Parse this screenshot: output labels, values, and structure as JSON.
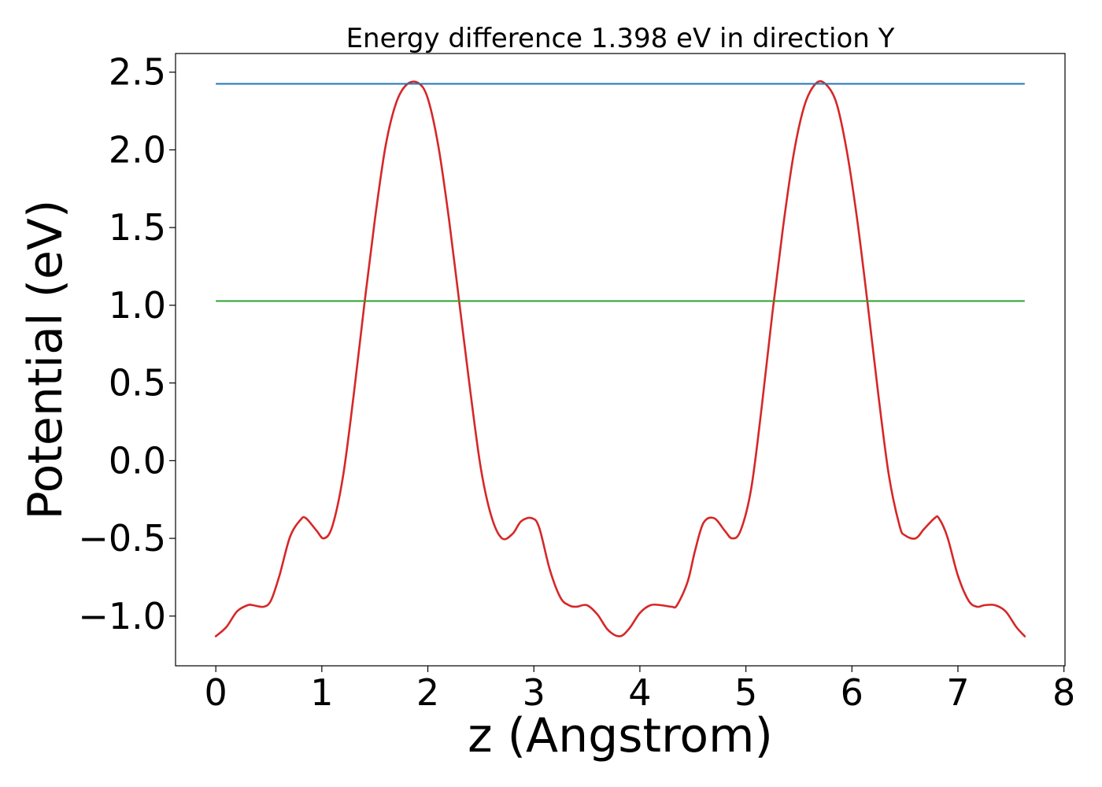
{
  "chart_data": {
    "type": "line",
    "title": "Energy difference 1.398 eV in direction Y",
    "xlabel": "z (Angstrom)",
    "ylabel": "Potential (eV)",
    "xlim": [
      -0.38,
      8.01
    ],
    "ylim": [
      -1.32,
      2.62
    ],
    "xticks": [
      0,
      1,
      2,
      3,
      4,
      5,
      6,
      7,
      8
    ],
    "xtick_labels": [
      "0",
      "1",
      "2",
      "3",
      "4",
      "5",
      "6",
      "7",
      "8"
    ],
    "yticks": [
      -1.0,
      -0.5,
      0.0,
      0.5,
      1.0,
      1.5,
      2.0,
      2.5
    ],
    "ytick_labels": [
      "−1.0",
      "−0.5",
      "0.0",
      "0.5",
      "1.0",
      "1.5",
      "2.0",
      "2.5"
    ],
    "grid": false,
    "series": [
      {
        "color": "#d62728",
        "kind": "curve",
        "x": [
          0.0,
          0.1,
          0.2,
          0.3,
          0.35,
          0.45,
          0.52,
          0.6,
          0.7,
          0.8,
          0.85,
          0.95,
          1.02,
          1.1,
          1.2,
          1.3,
          1.4,
          1.5,
          1.6,
          1.7,
          1.8,
          1.91,
          2.0,
          2.1,
          2.2,
          2.3,
          2.4,
          2.5,
          2.6,
          2.7,
          2.8,
          2.88,
          2.98,
          3.05,
          3.15,
          3.25,
          3.33,
          3.4,
          3.5,
          3.6,
          3.7,
          3.81,
          3.9,
          4.0,
          4.1,
          4.2,
          4.3,
          4.35,
          4.45,
          4.52,
          4.6,
          4.7,
          4.8,
          4.87,
          4.95,
          5.05,
          5.15,
          5.25,
          5.35,
          5.45,
          5.55,
          5.65,
          5.74,
          5.85,
          5.95,
          6.05,
          6.15,
          6.25,
          6.35,
          6.45,
          6.5,
          6.6,
          6.68,
          6.78,
          6.82,
          6.9,
          7.0,
          7.1,
          7.18,
          7.25,
          7.35,
          7.45,
          7.55,
          7.63
        ],
        "y": [
          -1.13,
          -1.07,
          -0.97,
          -0.93,
          -0.93,
          -0.94,
          -0.9,
          -0.74,
          -0.49,
          -0.38,
          -0.37,
          -0.45,
          -0.5,
          -0.42,
          -0.1,
          0.42,
          1.0,
          1.55,
          2.02,
          2.3,
          2.42,
          2.43,
          2.33,
          2.02,
          1.55,
          1.0,
          0.45,
          -0.05,
          -0.36,
          -0.5,
          -0.47,
          -0.39,
          -0.37,
          -0.43,
          -0.7,
          -0.88,
          -0.93,
          -0.94,
          -0.93,
          -0.99,
          -1.09,
          -1.13,
          -1.08,
          -0.98,
          -0.93,
          -0.93,
          -0.94,
          -0.93,
          -0.78,
          -0.58,
          -0.4,
          -0.37,
          -0.45,
          -0.5,
          -0.45,
          -0.18,
          0.35,
          0.95,
          1.5,
          1.97,
          2.28,
          2.42,
          2.43,
          2.31,
          2.0,
          1.55,
          1.0,
          0.42,
          -0.1,
          -0.42,
          -0.48,
          -0.5,
          -0.44,
          -0.37,
          -0.37,
          -0.49,
          -0.74,
          -0.9,
          -0.94,
          -0.93,
          -0.93,
          -0.97,
          -1.07,
          -1.13
        ]
      },
      {
        "color": "#1f77b4",
        "kind": "hline",
        "x": [
          0.0,
          7.63
        ],
        "y": [
          2.425,
          2.425
        ]
      },
      {
        "color": "#2ca02c",
        "kind": "hline",
        "x": [
          0.0,
          7.63
        ],
        "y": [
          1.027,
          1.027
        ]
      }
    ]
  }
}
